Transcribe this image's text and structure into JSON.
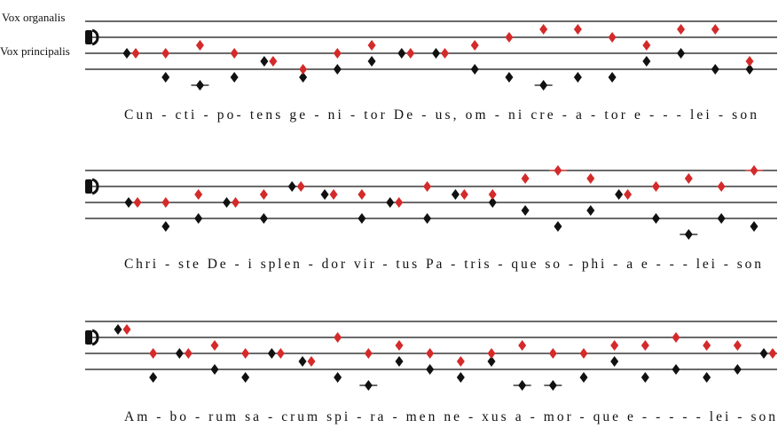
{
  "labels": {
    "organalis": "Vox organalis",
    "principalis": "Vox principalis"
  },
  "colors": {
    "vox_organalis": "#d42a2a",
    "vox_principalis": "#111111",
    "staff": "#111111"
  },
  "icons": {
    "clef": "c-clef-icon",
    "neume": "diamond-neume-icon"
  },
  "systems": [
    {
      "syllables": [
        "Cun",
        "-",
        "cti",
        "-",
        "po-",
        "tens",
        "ge",
        "-",
        "ni",
        "-",
        "tor",
        "De",
        "-",
        "us,",
        "om",
        "-",
        "ni",
        "cre",
        "-",
        "a",
        "-",
        "tor",
        "e",
        "-",
        "-",
        "-",
        "lei",
        "-",
        "son"
      ],
      "principalis": [
        4,
        4,
        5,
        4,
        3,
        2,
        4,
        5,
        4,
        4,
        5,
        6,
        7,
        7,
        6,
        5,
        7,
        7,
        3
      ],
      "organalis": [
        4,
        1,
        0,
        1,
        3,
        1,
        2,
        3,
        4,
        4,
        2,
        1,
        0,
        1,
        1,
        3,
        4,
        2,
        2
      ]
    },
    {
      "syllables": [
        "Chri",
        "-",
        "ste",
        "De",
        "-",
        "i",
        "splen",
        "-",
        "dor",
        "vir",
        "-",
        "tus",
        "Pa",
        "-",
        "tris",
        "-",
        "que",
        "so",
        "-",
        "phi",
        "-",
        "a",
        "e",
        "-",
        "-",
        "-",
        "lei",
        "-",
        "son"
      ],
      "principalis": [
        4,
        4,
        5,
        4,
        5,
        6,
        5,
        5,
        4,
        6,
        5,
        5,
        7,
        8,
        7,
        5,
        6,
        7,
        6,
        8
      ],
      "organalis": [
        4,
        1,
        2,
        4,
        2,
        6,
        5,
        2,
        4,
        2,
        5,
        4,
        3,
        1,
        3,
        5,
        2,
        0,
        2,
        1
      ]
    },
    {
      "syllables": [
        "Am",
        "-",
        "bo",
        "-",
        "rum",
        "sa",
        "-",
        "crum",
        "spi",
        "-",
        "ra",
        "-",
        "men",
        "ne",
        "-",
        "xus",
        "a",
        "-",
        "mor",
        "-",
        "que",
        "e",
        "-",
        "-",
        "-",
        "-",
        "-",
        "lei",
        "-",
        "son"
      ],
      "principalis": [
        7,
        4,
        4,
        5,
        4,
        4,
        3,
        6,
        4,
        5,
        4,
        3,
        4,
        5,
        4,
        4,
        5,
        5,
        6,
        5,
        5,
        4
      ],
      "organalis": [
        7,
        1,
        4,
        2,
        1,
        4,
        3,
        1,
        0,
        3,
        2,
        1,
        3,
        0,
        0,
        1,
        3,
        1,
        2,
        1,
        2,
        4
      ]
    }
  ]
}
